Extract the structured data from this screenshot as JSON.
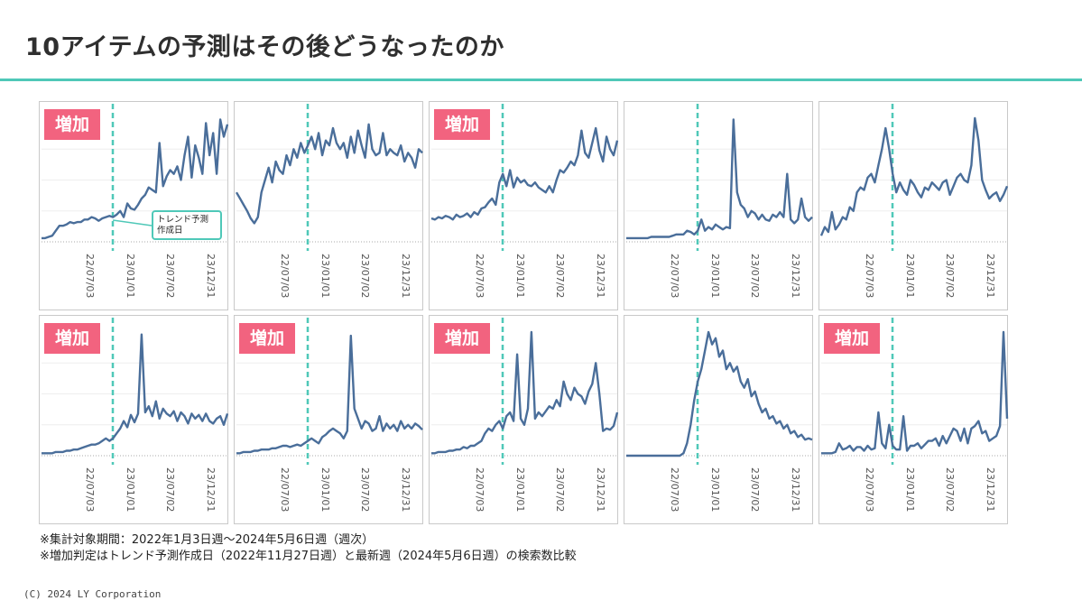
{
  "title": "10アイテムの予測はその後どうなったのか",
  "badge_label": "増加",
  "callout": {
    "line1": "トレンド予測",
    "line2": "作成日"
  },
  "notes": [
    "※集計対象期間：2022年1月3日週〜2024年5月6日週（週次）",
    "※増加判定はトレンド予測作成日（2022年11月27日週）と最新週（2024年5月6日週）の検索数比較"
  ],
  "footer": "(C) 2024 LY Corporation",
  "colors": {
    "line": "#4a6e9a",
    "marker": "#4fc8b8",
    "badge": "#f2637f",
    "rule": "#4fc8b8"
  },
  "chart_data": [
    {
      "type": "line",
      "increase": true,
      "x_ticks": [
        "22/07/03",
        "23/01/01",
        "23/07/02",
        "23/12/31"
      ],
      "forecast_marker": "2022-11-27",
      "ylim": [
        0,
        100
      ],
      "values": [
        3,
        3,
        4,
        5,
        9,
        13,
        13,
        14,
        16,
        15,
        16,
        16,
        18,
        18,
        20,
        19,
        17,
        19,
        20,
        21,
        20,
        22,
        25,
        20,
        31,
        27,
        26,
        30,
        35,
        38,
        44,
        42,
        40,
        80,
        45,
        53,
        58,
        55,
        61,
        50,
        70,
        85,
        52,
        78,
        68,
        55,
        96,
        70,
        88,
        55,
        99,
        85,
        95
      ]
    },
    {
      "type": "line",
      "increase": false,
      "x_ticks": [
        "22/07/03",
        "23/01/01",
        "23/07/02",
        "23/12/31"
      ],
      "forecast_marker": "2022-11-27",
      "ylim": [
        0,
        100
      ],
      "values": [
        40,
        35,
        30,
        25,
        19,
        15,
        20,
        40,
        50,
        60,
        48,
        65,
        58,
        55,
        70,
        62,
        75,
        68,
        80,
        72,
        78,
        85,
        75,
        88,
        70,
        82,
        78,
        92,
        80,
        75,
        80,
        68,
        85,
        72,
        90,
        78,
        68,
        95,
        75,
        70,
        72,
        88,
        70,
        75,
        72,
        70,
        78,
        65,
        72,
        68,
        60,
        75,
        72
      ]
    },
    {
      "type": "line",
      "increase": true,
      "x_ticks": [
        "22/07/03",
        "23/01/01",
        "23/07/02",
        "23/12/31"
      ],
      "forecast_marker": "2022-11-27",
      "ylim": [
        0,
        100
      ],
      "values": [
        19,
        18,
        20,
        19,
        21,
        20,
        18,
        22,
        20,
        21,
        23,
        20,
        24,
        22,
        27,
        28,
        32,
        35,
        30,
        48,
        55,
        45,
        58,
        44,
        52,
        48,
        50,
        46,
        45,
        48,
        44,
        42,
        40,
        45,
        40,
        50,
        58,
        56,
        60,
        65,
        62,
        70,
        90,
        72,
        68,
        80,
        92,
        74,
        65,
        85,
        75,
        70,
        82
      ]
    },
    {
      "type": "line",
      "increase": false,
      "x_ticks": [
        "22/07/03",
        "23/01/01",
        "23/07/02",
        "23/12/31"
      ],
      "forecast_marker": "2022-11-27",
      "ylim": [
        0,
        100
      ],
      "values": [
        3,
        3,
        3,
        3,
        3,
        3,
        3,
        4,
        4,
        4,
        4,
        4,
        4,
        5,
        6,
        6,
        6,
        9,
        8,
        6,
        9,
        18,
        9,
        12,
        10,
        14,
        12,
        10,
        12,
        11,
        99,
        40,
        30,
        27,
        20,
        25,
        23,
        18,
        22,
        18,
        17,
        22,
        20,
        24,
        20,
        55,
        18,
        15,
        18,
        35,
        20,
        17,
        20
      ]
    },
    {
      "type": "line",
      "increase": false,
      "x_ticks": [
        "22/07/03",
        "23/01/01",
        "23/07/02",
        "23/12/31"
      ],
      "forecast_marker": "2022-11-27",
      "ylim": [
        0,
        100
      ],
      "values": [
        5,
        12,
        8,
        24,
        10,
        14,
        20,
        18,
        28,
        25,
        40,
        44,
        42,
        52,
        55,
        48,
        62,
        75,
        92,
        75,
        55,
        40,
        48,
        42,
        38,
        50,
        46,
        40,
        36,
        44,
        42,
        48,
        45,
        42,
        48,
        50,
        38,
        45,
        52,
        55,
        50,
        48,
        62,
        100,
        82,
        50,
        42,
        35,
        38,
        40,
        33,
        38,
        45
      ]
    },
    {
      "type": "line",
      "increase": true,
      "x_ticks": [
        "22/07/03",
        "23/01/01",
        "23/07/02",
        "23/12/31"
      ],
      "forecast_marker": "2022-11-27",
      "ylim": [
        0,
        100
      ],
      "values": [
        2,
        2,
        2,
        2,
        3,
        3,
        3,
        4,
        4,
        5,
        5,
        6,
        7,
        8,
        9,
        9,
        10,
        12,
        14,
        12,
        14,
        18,
        22,
        28,
        23,
        33,
        27,
        34,
        98,
        35,
        40,
        32,
        44,
        30,
        38,
        34,
        32,
        36,
        28,
        35,
        32,
        26,
        34,
        30,
        33,
        28,
        34,
        28,
        26,
        30,
        32,
        25,
        34
      ]
    },
    {
      "type": "line",
      "increase": true,
      "x_ticks": [
        "22/07/03",
        "23/01/01",
        "23/07/02",
        "23/12/31"
      ],
      "forecast_marker": "2022-11-27",
      "ylim": [
        0,
        100
      ],
      "values": [
        2,
        2,
        3,
        3,
        3,
        4,
        4,
        5,
        5,
        5,
        6,
        6,
        7,
        8,
        8,
        7,
        8,
        9,
        8,
        10,
        12,
        14,
        12,
        10,
        15,
        17,
        20,
        22,
        20,
        18,
        14,
        20,
        97,
        38,
        30,
        22,
        28,
        26,
        20,
        22,
        32,
        20,
        26,
        22,
        25,
        20,
        28,
        22,
        25,
        22,
        26,
        24,
        21
      ]
    },
    {
      "type": "line",
      "increase": true,
      "x_ticks": [
        "22/07/03",
        "23/01/01",
        "23/07/02",
        "23/12/31"
      ],
      "forecast_marker": "2022-11-27",
      "ylim": [
        0,
        100
      ],
      "values": [
        2,
        2,
        3,
        3,
        3,
        4,
        4,
        5,
        5,
        7,
        6,
        8,
        8,
        10,
        12,
        18,
        22,
        20,
        25,
        28,
        22,
        32,
        35,
        28,
        82,
        30,
        25,
        38,
        100,
        30,
        35,
        32,
        36,
        40,
        38,
        45,
        40,
        60,
        50,
        45,
        55,
        50,
        48,
        42,
        52,
        58,
        75,
        50,
        20,
        22,
        21,
        24,
        35
      ]
    },
    {
      "type": "line",
      "increase": false,
      "x_ticks": [
        "22/07/03",
        "23/01/01",
        "23/07/02",
        "23/12/31"
      ],
      "forecast_marker": "2022-11-27",
      "ylim": [
        0,
        100
      ],
      "values": [
        0,
        0,
        0,
        0,
        0,
        0,
        0,
        0,
        0,
        0,
        0,
        0,
        0,
        0,
        0,
        0,
        2,
        10,
        25,
        45,
        60,
        70,
        85,
        100,
        90,
        95,
        80,
        85,
        70,
        75,
        68,
        72,
        60,
        55,
        62,
        48,
        52,
        42,
        35,
        38,
        30,
        32,
        26,
        28,
        22,
        25,
        18,
        20,
        15,
        17,
        13,
        14,
        13
      ]
    },
    {
      "type": "line",
      "increase": true,
      "x_ticks": [
        "22/07/03",
        "23/01/01",
        "23/07/02",
        "23/12/31"
      ],
      "forecast_marker": "2022-11-27",
      "ylim": [
        0,
        100
      ],
      "values": [
        2,
        2,
        2,
        2,
        3,
        10,
        5,
        6,
        8,
        4,
        7,
        7,
        4,
        8,
        5,
        6,
        35,
        10,
        6,
        25,
        8,
        5,
        5,
        32,
        4,
        8,
        8,
        10,
        6,
        9,
        12,
        12,
        14,
        8,
        16,
        10,
        16,
        22,
        20,
        12,
        22,
        10,
        22,
        24,
        28,
        18,
        20,
        12,
        14,
        16,
        24,
        100,
        30
      ]
    }
  ]
}
